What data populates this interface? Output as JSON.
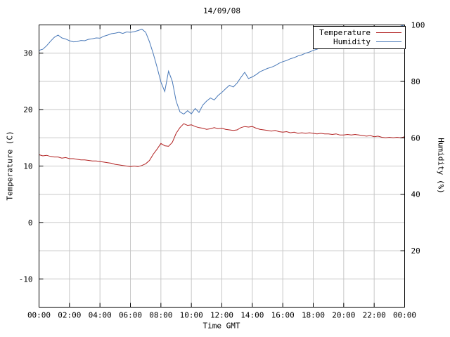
{
  "chart_data": {
    "type": "line",
    "title": "14/09/08",
    "xlabel": "Time GMT",
    "ylabel": "Temperature (C)",
    "y2label": "Humidity (%)",
    "xlim": [
      0,
      24
    ],
    "ylim": [
      -15,
      35
    ],
    "y2lim": [
      0,
      100
    ],
    "grid": true,
    "legend_position": "top-right",
    "x_ticks": {
      "values": [
        0,
        2,
        4,
        6,
        8,
        10,
        12,
        14,
        16,
        18,
        20,
        22,
        24
      ],
      "labels": [
        "00:00",
        "02:00",
        "04:00",
        "06:00",
        "08:00",
        "10:00",
        "12:00",
        "14:00",
        "16:00",
        "18:00",
        "20:00",
        "22:00",
        "00:00"
      ]
    },
    "y_ticks": [
      -10,
      0,
      10,
      20,
      30
    ],
    "y2_ticks": [
      20,
      40,
      60,
      80,
      100
    ],
    "x": [
      0,
      0.25,
      0.5,
      0.75,
      1,
      1.25,
      1.5,
      1.75,
      2,
      2.25,
      2.5,
      2.75,
      3,
      3.25,
      3.5,
      3.75,
      4,
      4.25,
      4.5,
      4.75,
      5,
      5.25,
      5.5,
      5.75,
      6,
      6.25,
      6.5,
      6.75,
      7,
      7.25,
      7.5,
      7.75,
      8,
      8.25,
      8.5,
      8.75,
      9,
      9.25,
      9.5,
      9.75,
      10,
      10.25,
      10.5,
      10.75,
      11,
      11.25,
      11.5,
      11.75,
      12,
      12.25,
      12.5,
      12.75,
      13,
      13.25,
      13.5,
      13.75,
      14,
      14.25,
      14.5,
      14.75,
      15,
      15.25,
      15.5,
      15.75,
      16,
      16.25,
      16.5,
      16.75,
      17,
      17.25,
      17.5,
      17.75,
      18,
      18.25,
      18.5,
      18.75,
      19,
      19.25,
      19.5,
      19.75,
      20,
      20.25,
      20.5,
      20.75,
      21,
      21.25,
      21.5,
      21.75,
      22,
      22.25,
      22.5,
      22.75,
      23,
      23.25,
      23.5,
      23.75,
      24
    ],
    "series": [
      {
        "name": "Temperature",
        "axis": "y",
        "color": "#b22222",
        "values": [
          12.0,
          11.8,
          11.9,
          11.7,
          11.6,
          11.6,
          11.4,
          11.5,
          11.3,
          11.3,
          11.2,
          11.1,
          11.1,
          11.0,
          10.9,
          10.9,
          10.8,
          10.7,
          10.6,
          10.5,
          10.3,
          10.2,
          10.1,
          10.0,
          9.9,
          10.0,
          9.9,
          10.1,
          10.4,
          11.0,
          12.1,
          13.0,
          14.0,
          13.6,
          13.5,
          14.2,
          15.8,
          16.8,
          17.5,
          17.2,
          17.3,
          17.0,
          16.8,
          16.7,
          16.5,
          16.6,
          16.8,
          16.6,
          16.7,
          16.5,
          16.4,
          16.3,
          16.4,
          16.8,
          17.0,
          16.9,
          17.0,
          16.7,
          16.5,
          16.4,
          16.3,
          16.2,
          16.3,
          16.1,
          16.0,
          16.1,
          15.9,
          16.0,
          15.8,
          15.9,
          15.8,
          15.9,
          15.8,
          15.7,
          15.8,
          15.7,
          15.7,
          15.6,
          15.7,
          15.5,
          15.5,
          15.6,
          15.5,
          15.6,
          15.5,
          15.4,
          15.3,
          15.4,
          15.2,
          15.3,
          15.1,
          15.0,
          15.1,
          15.0,
          15.1,
          15.0,
          15.2
        ]
      },
      {
        "name": "Humidity",
        "axis": "y2",
        "color": "#4878b8",
        "values": [
          91.0,
          91.4,
          92.6,
          94.2,
          95.6,
          96.4,
          95.4,
          95.0,
          94.4,
          94.0,
          94.1,
          94.5,
          94.4,
          94.9,
          95.1,
          95.4,
          95.3,
          96.0,
          96.4,
          96.9,
          97.1,
          97.4,
          97.0,
          97.5,
          97.4,
          97.6,
          98.0,
          98.5,
          97.4,
          94.0,
          89.8,
          85.0,
          79.8,
          76.4,
          83.6,
          80.0,
          73.0,
          69.2,
          68.4,
          69.6,
          68.5,
          70.4,
          69.0,
          71.6,
          73.0,
          74.1,
          73.4,
          75.0,
          76.1,
          77.4,
          78.6,
          78.0,
          79.4,
          81.4,
          83.2,
          81.0,
          81.6,
          82.4,
          83.4,
          84.0,
          84.6,
          85.0,
          85.6,
          86.4,
          87.0,
          87.4,
          88.0,
          88.4,
          89.0,
          89.4,
          90.0,
          90.4,
          91.0,
          91.4,
          92.0,
          92.4,
          93.0,
          93.1,
          93.6,
          94.0,
          94.1,
          94.5,
          94.6,
          95.0,
          95.1,
          95.5,
          96.0,
          96.1,
          96.5,
          96.6,
          97.0,
          97.4,
          97.6,
          98.2,
          99.0,
          99.6,
          100.0
        ]
      }
    ]
  },
  "legend": {
    "items": [
      {
        "label": "Temperature"
      },
      {
        "label": "Humidity"
      }
    ]
  }
}
